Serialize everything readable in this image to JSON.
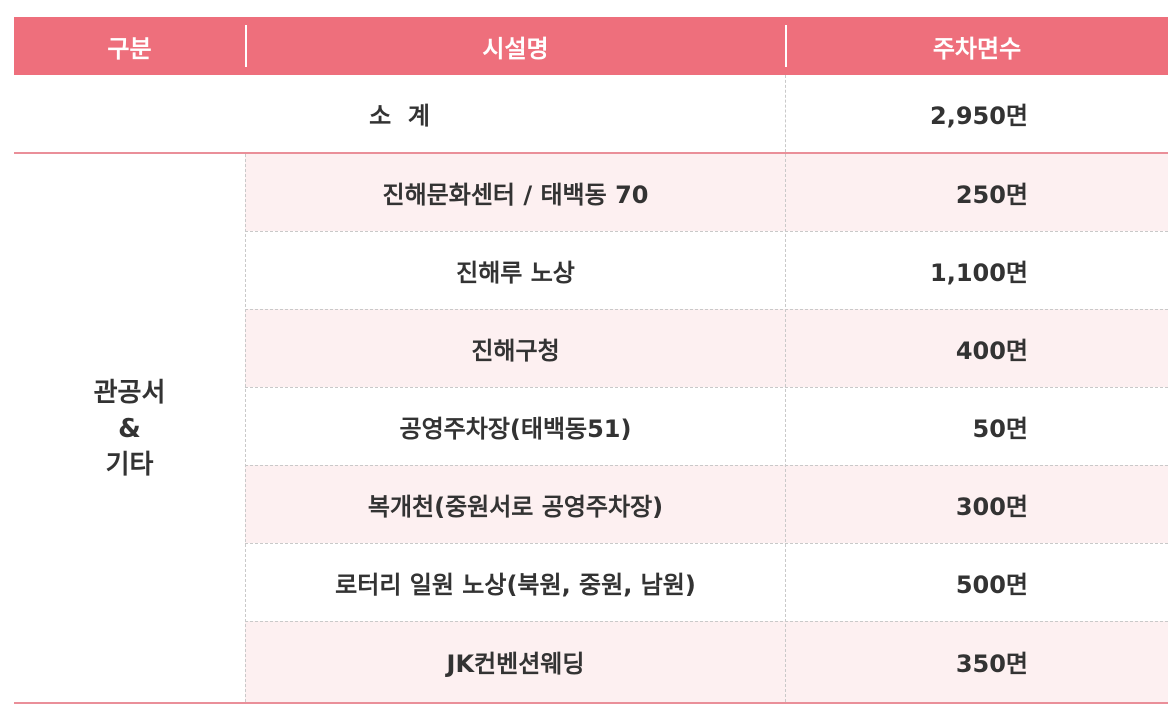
{
  "header": {
    "col_category": "구분",
    "col_facility": "시설명",
    "col_spaces": "주차면수"
  },
  "subtotal": {
    "label": "소  계",
    "value": "2,950면"
  },
  "category": {
    "line1": "관공서",
    "line2": "&",
    "line3": "기타"
  },
  "rows": [
    {
      "facility": "진해문화센터 / 태백동 70",
      "spaces": "250면"
    },
    {
      "facility": "진해루 노상",
      "spaces": "1,100면"
    },
    {
      "facility": "진해구청",
      "spaces": "400면"
    },
    {
      "facility": "공영주차장(태백동51)",
      "spaces": "50면"
    },
    {
      "facility": "복개천(중원서로 공영주차장)",
      "spaces": "300면"
    },
    {
      "facility": "로터리 일원 노상(북원, 중원, 남원)",
      "spaces": "500면"
    },
    {
      "facility": "JK컨벤션웨딩",
      "spaces": "350면"
    }
  ],
  "colors": {
    "header_bg": "#ee6f7c",
    "row_pink": "#fdf0f1",
    "border_pink": "#ea8f99"
  }
}
